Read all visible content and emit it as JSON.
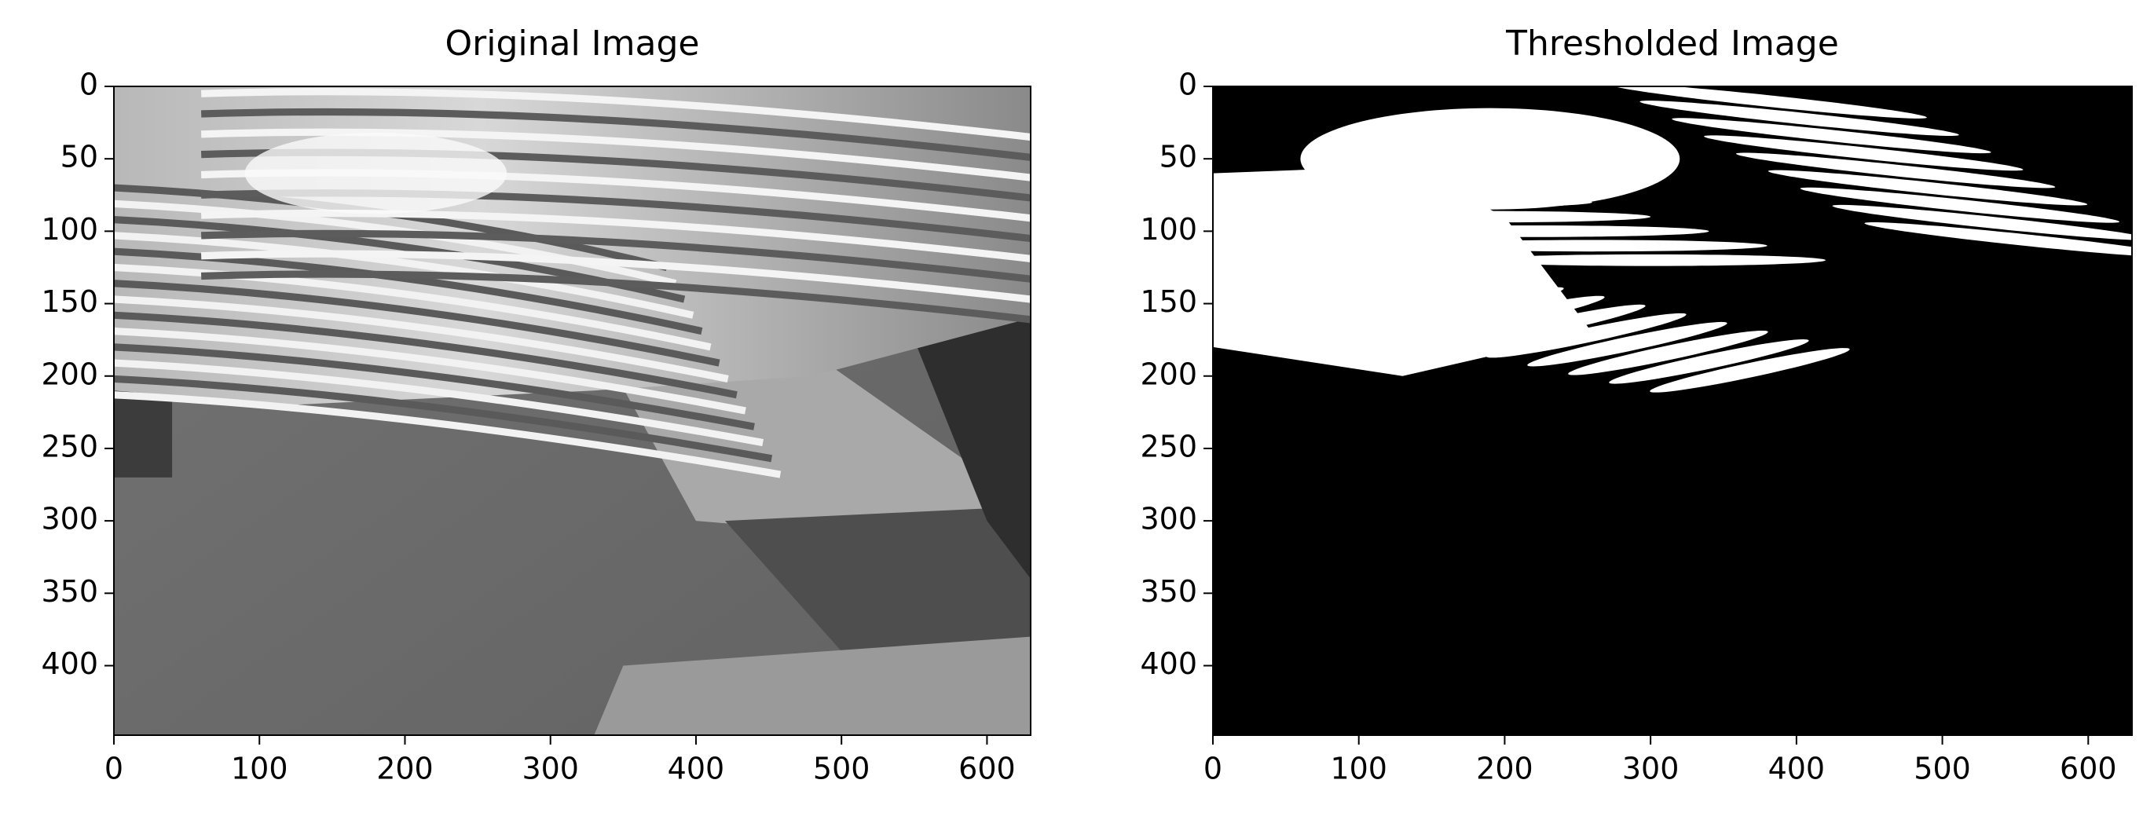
{
  "chart_data": [
    {
      "type": "image",
      "title": "Original Image",
      "xlim": [
        0,
        630
      ],
      "ylim": [
        448,
        0
      ],
      "xticks": [
        0,
        100,
        200,
        300,
        400,
        500,
        600
      ],
      "yticks": [
        0,
        50,
        100,
        150,
        200,
        250,
        300,
        350,
        400
      ]
    },
    {
      "type": "image",
      "title": "Thresholded Image",
      "xlim": [
        0,
        630
      ],
      "ylim": [
        448,
        0
      ],
      "xticks": [
        0,
        100,
        200,
        300,
        400,
        500,
        600
      ],
      "yticks": [
        0,
        50,
        100,
        150,
        200,
        250,
        300,
        350,
        400
      ]
    }
  ]
}
